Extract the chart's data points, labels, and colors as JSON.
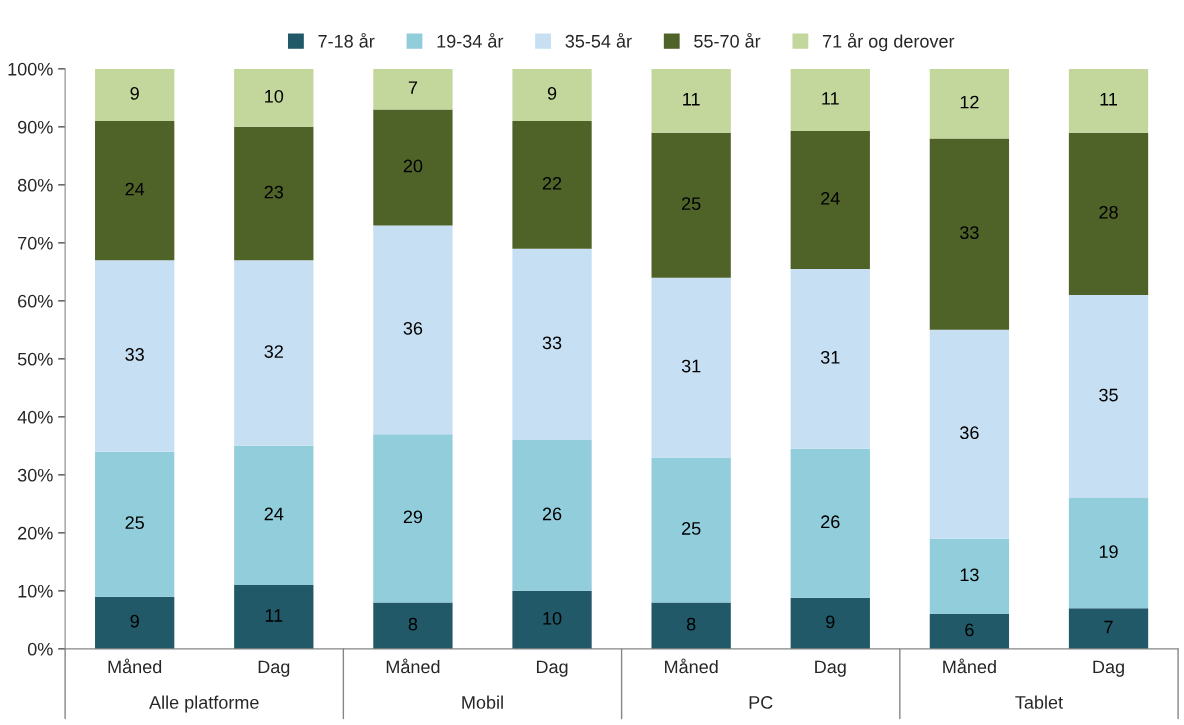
{
  "chart_data": {
    "type": "bar",
    "stacked": true,
    "categories": [
      "Måned",
      "Dag",
      "Måned",
      "Dag",
      "Måned",
      "Dag",
      "Måned",
      "Dag"
    ],
    "annotations": [
      "Alle platforme",
      "Mobil",
      "PC",
      "Tablet"
    ],
    "series": [
      {
        "name": "7-18 år",
        "color": "#215968",
        "values": [
          9,
          11,
          8,
          10,
          8,
          8.8,
          6,
          7
        ],
        "value_labels": [
          "9",
          "11",
          "8",
          "10",
          "8",
          "9",
          "6",
          "7"
        ]
      },
      {
        "name": "19-34 år",
        "color": "#92cddc",
        "values": [
          25,
          24,
          29,
          26,
          25,
          25.7,
          13,
          19
        ],
        "value_labels": [
          "25",
          "24",
          "29",
          "26",
          "25",
          "26",
          "13",
          "19"
        ]
      },
      {
        "name": "35-54 år",
        "color": "#c6dff2",
        "values": [
          33,
          32,
          36,
          33,
          31,
          31,
          36,
          35
        ],
        "value_labels": [
          "33",
          "32",
          "36",
          "33",
          "31",
          "31",
          "36",
          "35"
        ]
      },
      {
        "name": "55-70 år",
        "color": "#4f6228",
        "values": [
          24,
          23,
          20,
          22,
          25,
          23.8,
          33,
          28
        ],
        "value_labels": [
          "24",
          "23",
          "20",
          "22",
          "25",
          "24",
          "33",
          "28"
        ]
      },
      {
        "name": "71 år og derover",
        "color": "#c3d69b",
        "values": [
          9,
          10,
          7,
          9,
          11,
          10.7,
          12,
          11
        ],
        "value_labels": [
          "9",
          "10",
          "7",
          "9",
          "11",
          "11",
          "12",
          "11"
        ]
      }
    ],
    "ylim": [
      0,
      100
    ],
    "yticks": [
      {
        "value": 0,
        "label": "0%"
      },
      {
        "value": 10,
        "label": "10%"
      },
      {
        "value": 20,
        "label": "20%"
      },
      {
        "value": 30,
        "label": "30%"
      },
      {
        "value": 40,
        "label": "40%"
      },
      {
        "value": 50,
        "label": "50%"
      },
      {
        "value": 60,
        "label": "60%"
      },
      {
        "value": 70,
        "label": "70%"
      },
      {
        "value": 80,
        "label": "80%"
      },
      {
        "value": 90,
        "label": "90%"
      },
      {
        "value": 100,
        "label": "100%"
      }
    ],
    "grid": false,
    "legend": "top"
  }
}
